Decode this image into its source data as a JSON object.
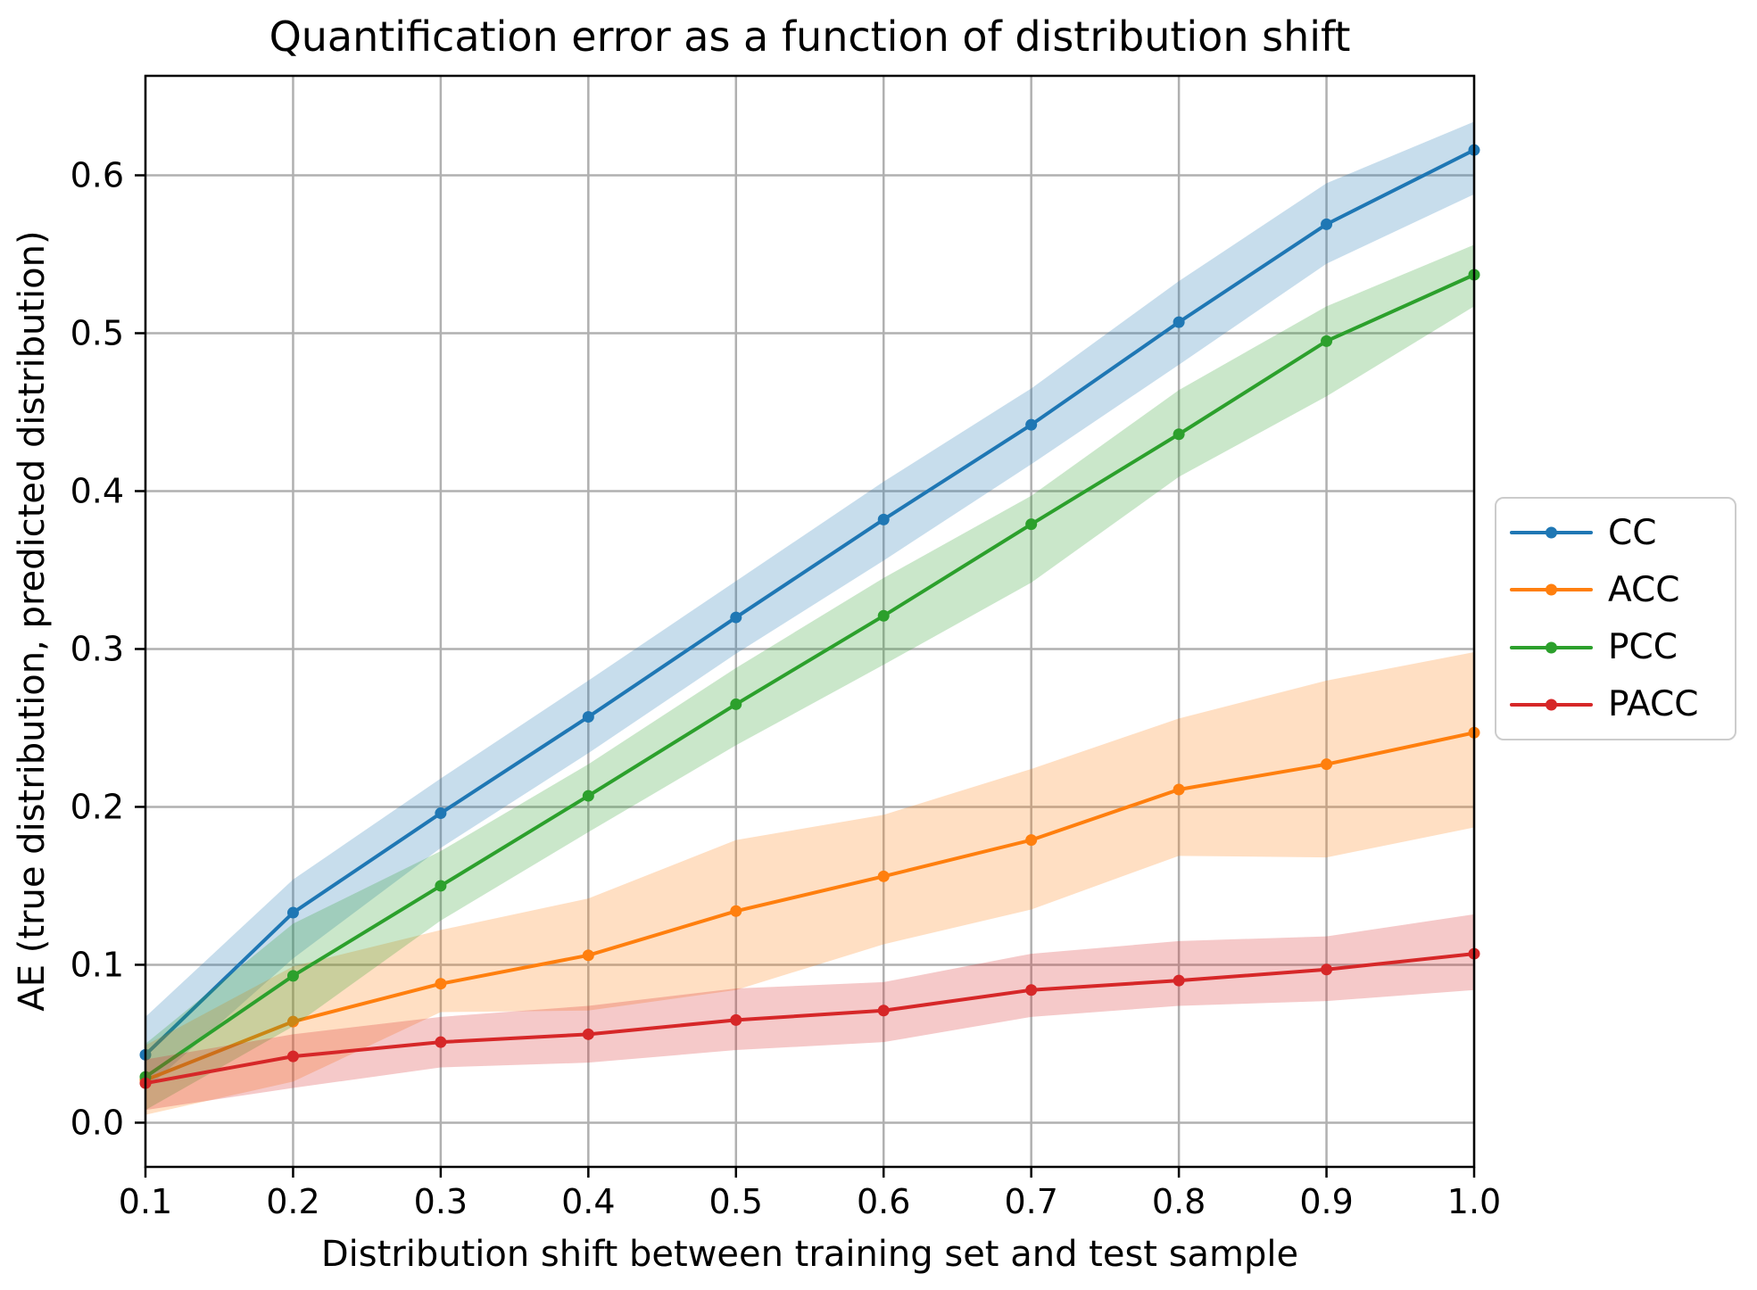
{
  "chart_data": {
    "type": "line",
    "title": "Quantification error as a function of distribution shift",
    "xlabel": "Distribution shift between training set and test sample",
    "ylabel": "AE (true distribution, predicted distribution)",
    "x": [
      0.1,
      0.2,
      0.3,
      0.4,
      0.5,
      0.6,
      0.7,
      0.8,
      0.9,
      1.0
    ],
    "x_tick_labels": [
      "0.1",
      "0.2",
      "0.3",
      "0.4",
      "0.5",
      "0.6",
      "0.7",
      "0.8",
      "0.9",
      "1.0"
    ],
    "y_tick_values": [
      0.0,
      0.1,
      0.2,
      0.3,
      0.4,
      0.5,
      0.6
    ],
    "y_tick_labels": [
      "0.0",
      "0.1",
      "0.2",
      "0.3",
      "0.4",
      "0.5",
      "0.6"
    ],
    "xlim": [
      0.1,
      1.0
    ],
    "ylim": [
      -0.028,
      0.663
    ],
    "grid": true,
    "grid_color": "#b0b0b0",
    "legend_position": "outside-right",
    "band_opacity": 0.25,
    "series": [
      {
        "name": "CC",
        "color": "#1f77b4",
        "values": [
          0.043,
          0.133,
          0.196,
          0.257,
          0.32,
          0.382,
          0.442,
          0.507,
          0.569,
          0.616
        ],
        "band_lower": [
          0.021,
          0.104,
          0.174,
          0.234,
          0.297,
          0.356,
          0.417,
          0.48,
          0.544,
          0.588
        ],
        "band_upper": [
          0.067,
          0.154,
          0.218,
          0.28,
          0.343,
          0.406,
          0.465,
          0.533,
          0.595,
          0.634
        ]
      },
      {
        "name": "ACC",
        "color": "#ff7f0e",
        "values": [
          0.027,
          0.064,
          0.088,
          0.106,
          0.134,
          0.156,
          0.179,
          0.211,
          0.227,
          0.247
        ],
        "band_lower": [
          0.005,
          0.026,
          0.07,
          0.071,
          0.084,
          0.113,
          0.135,
          0.169,
          0.168,
          0.187
        ],
        "band_upper": [
          0.049,
          0.099,
          0.122,
          0.142,
          0.179,
          0.195,
          0.224,
          0.256,
          0.28,
          0.298
        ]
      },
      {
        "name": "PCC",
        "color": "#2ca02c",
        "values": [
          0.029,
          0.093,
          0.15,
          0.207,
          0.265,
          0.321,
          0.379,
          0.436,
          0.495,
          0.537
        ],
        "band_lower": [
          0.008,
          0.061,
          0.128,
          0.184,
          0.239,
          0.29,
          0.342,
          0.409,
          0.46,
          0.517
        ],
        "band_upper": [
          0.05,
          0.126,
          0.172,
          0.227,
          0.288,
          0.345,
          0.397,
          0.464,
          0.517,
          0.556
        ]
      },
      {
        "name": "PACC",
        "color": "#d62728",
        "values": [
          0.025,
          0.042,
          0.051,
          0.056,
          0.065,
          0.071,
          0.084,
          0.09,
          0.097,
          0.107
        ],
        "band_lower": [
          0.008,
          0.022,
          0.035,
          0.038,
          0.046,
          0.051,
          0.067,
          0.074,
          0.077,
          0.084
        ],
        "band_upper": [
          0.04,
          0.056,
          0.067,
          0.074,
          0.085,
          0.089,
          0.107,
          0.115,
          0.118,
          0.132
        ]
      }
    ]
  }
}
